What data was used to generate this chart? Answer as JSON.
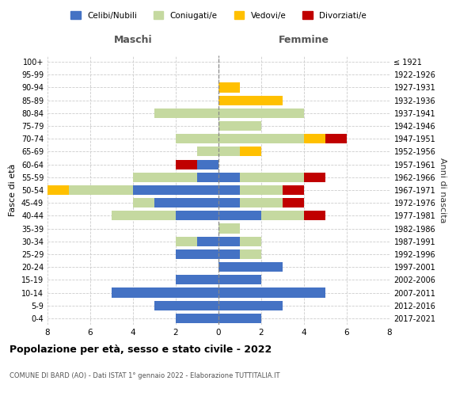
{
  "age_groups": [
    "0-4",
    "5-9",
    "10-14",
    "15-19",
    "20-24",
    "25-29",
    "30-34",
    "35-39",
    "40-44",
    "45-49",
    "50-54",
    "55-59",
    "60-64",
    "65-69",
    "70-74",
    "75-79",
    "80-84",
    "85-89",
    "90-94",
    "95-99",
    "100+"
  ],
  "birth_years": [
    "2017-2021",
    "2012-2016",
    "2007-2011",
    "2002-2006",
    "1997-2001",
    "1992-1996",
    "1987-1991",
    "1982-1986",
    "1977-1981",
    "1972-1976",
    "1967-1971",
    "1962-1966",
    "1957-1961",
    "1952-1956",
    "1947-1951",
    "1942-1946",
    "1937-1941",
    "1932-1936",
    "1927-1931",
    "1922-1926",
    "≤ 1921"
  ],
  "maschi": {
    "celibi": [
      2,
      3,
      5,
      2,
      0,
      2,
      1,
      0,
      2,
      3,
      4,
      1,
      1,
      0,
      0,
      0,
      0,
      0,
      0,
      0,
      0
    ],
    "coniugati": [
      0,
      0,
      0,
      0,
      0,
      0,
      1,
      0,
      3,
      1,
      3,
      3,
      0,
      1,
      2,
      0,
      3,
      0,
      0,
      0,
      0
    ],
    "vedovi": [
      0,
      0,
      0,
      0,
      0,
      0,
      0,
      0,
      0,
      0,
      1,
      0,
      0,
      0,
      0,
      0,
      0,
      0,
      0,
      0,
      0
    ],
    "divorziati": [
      0,
      0,
      0,
      0,
      0,
      0,
      0,
      0,
      0,
      0,
      0,
      0,
      1,
      0,
      0,
      0,
      0,
      0,
      0,
      0,
      0
    ]
  },
  "femmine": {
    "nubili": [
      2,
      3,
      5,
      2,
      3,
      1,
      1,
      0,
      2,
      1,
      1,
      1,
      0,
      0,
      0,
      0,
      0,
      0,
      0,
      0,
      0
    ],
    "coniugate": [
      0,
      0,
      0,
      0,
      0,
      1,
      1,
      1,
      2,
      2,
      2,
      3,
      0,
      1,
      4,
      2,
      4,
      0,
      0,
      0,
      0
    ],
    "vedove": [
      0,
      0,
      0,
      0,
      0,
      0,
      0,
      0,
      0,
      0,
      0,
      0,
      0,
      1,
      1,
      0,
      0,
      3,
      1,
      0,
      0
    ],
    "divorziate": [
      0,
      0,
      0,
      0,
      0,
      0,
      0,
      0,
      1,
      1,
      1,
      1,
      0,
      0,
      1,
      0,
      0,
      0,
      0,
      0,
      0
    ]
  },
  "colors": {
    "celibi": "#4472c4",
    "coniugati": "#c5d9a0",
    "vedovi": "#ffc000",
    "divorziati": "#c00000"
  },
  "xlim": 8,
  "title": "Popolazione per età, sesso e stato civile - 2022",
  "subtitle": "COMUNE DI BARD (AO) - Dati ISTAT 1° gennaio 2022 - Elaborazione TUTTITALIA.IT",
  "ylabel_left": "Fasce di età",
  "ylabel_right": "Anni di nascita",
  "legend_labels": [
    "Celibi/Nubili",
    "Coniugati/e",
    "Vedovi/e",
    "Divorziati/e"
  ]
}
